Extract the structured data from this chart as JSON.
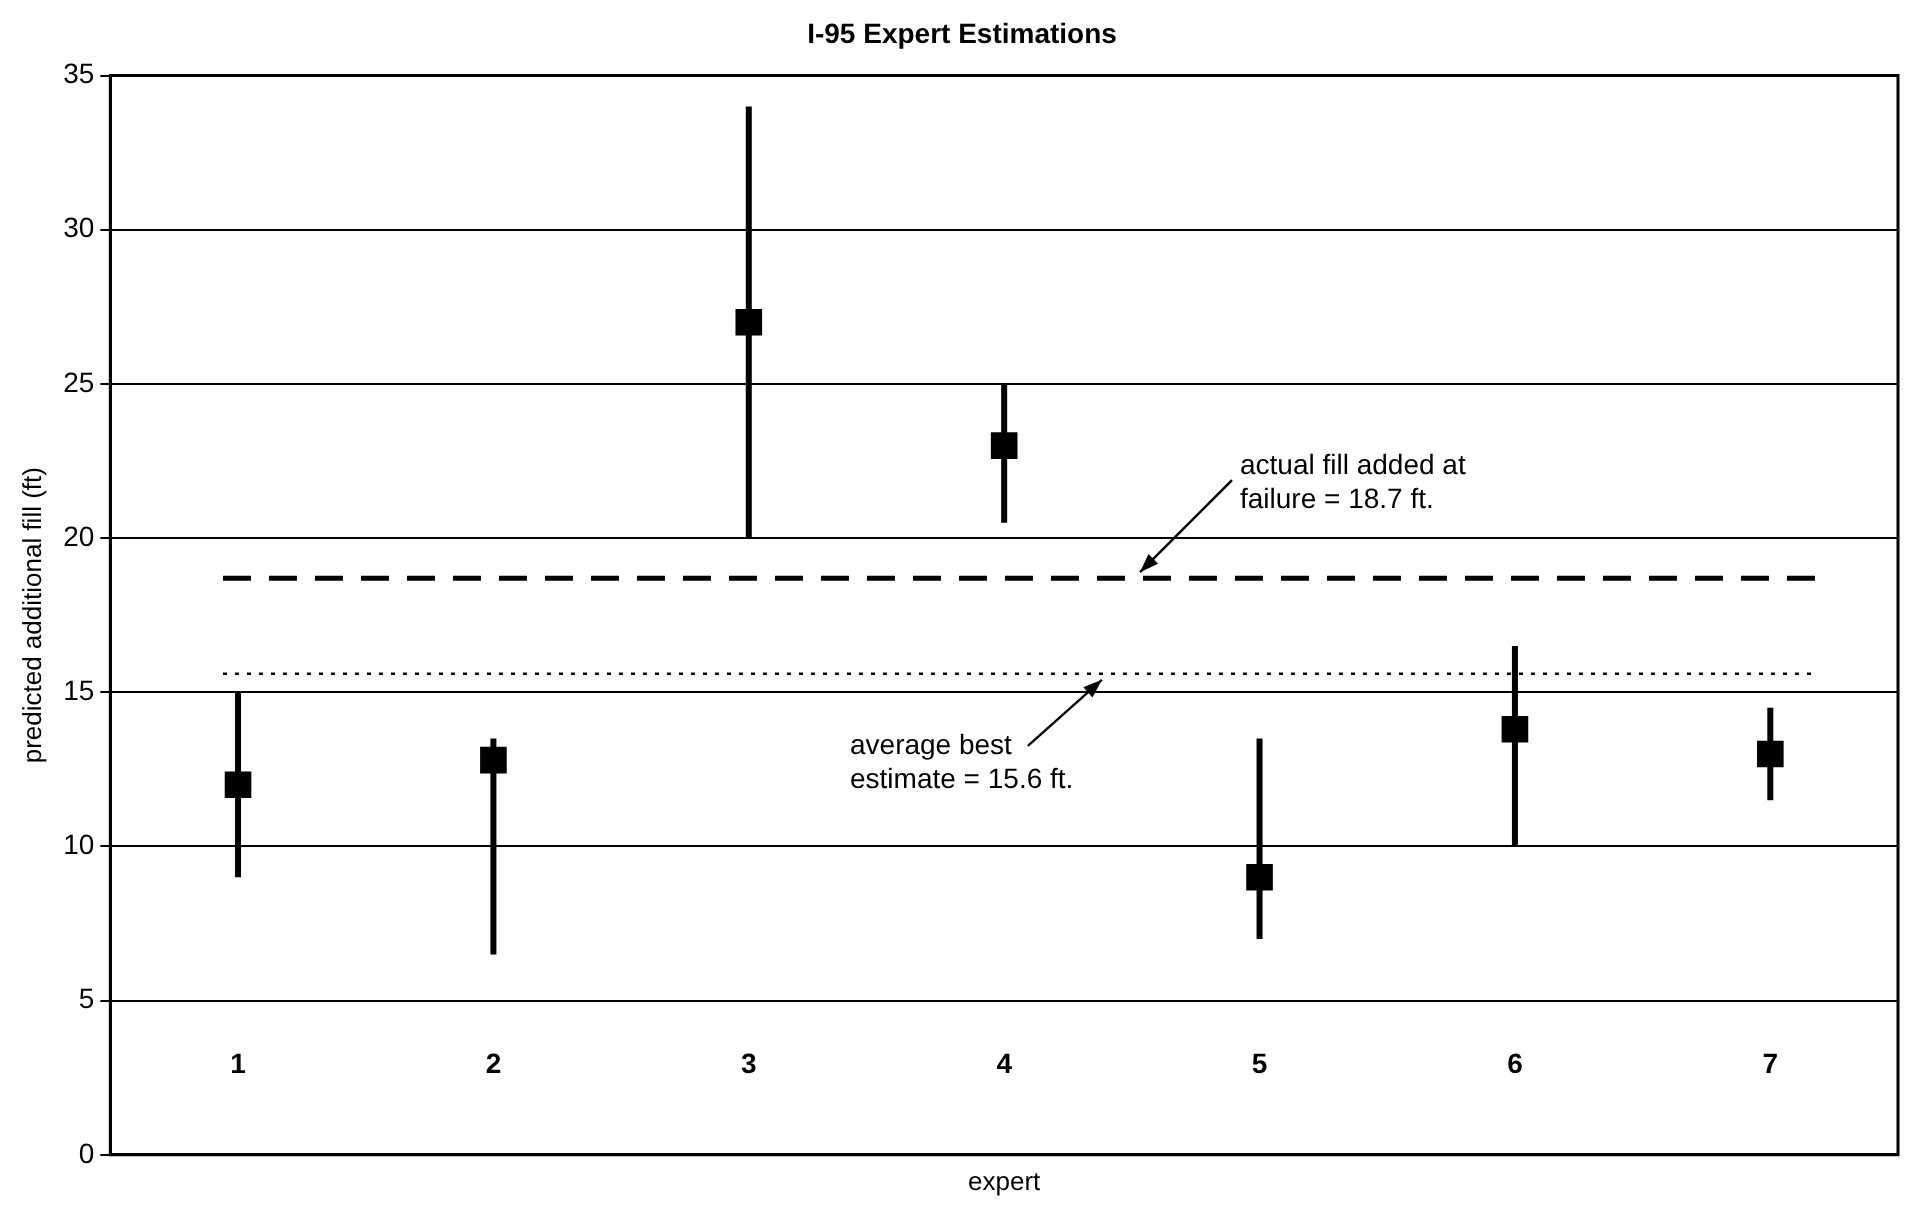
{
  "chart_data": {
    "type": "scatter",
    "title": "I-95 Expert Estimations",
    "xlabel": "expert",
    "ylabel": "predicted additional fill (ft)",
    "categories": [
      "1",
      "2",
      "3",
      "4",
      "5",
      "6",
      "7"
    ],
    "series": [
      {
        "color": "#000000",
        "values": [
          12,
          12.8,
          27,
          23,
          9,
          13.8,
          13
        ],
        "errors": [
          [
            9,
            15
          ],
          [
            6.5,
            13.5
          ],
          [
            20,
            34
          ],
          [
            20.5,
            25
          ],
          [
            7,
            13.5
          ],
          [
            10,
            16.5
          ],
          [
            11.5,
            14.5
          ]
        ]
      }
    ],
    "ref_lines": [
      {
        "axis": "y",
        "value": 18.7,
        "label": "actual fill added at failure = 18.7 ft.",
        "color": "#000000",
        "line_style": "dashed"
      },
      {
        "axis": "y",
        "value": 15.6,
        "label": "average best estimate = 15.6 ft.",
        "color": "#000000",
        "line_style": "dotted"
      }
    ],
    "ylim": [
      0,
      35
    ],
    "yticks": [
      0,
      5,
      10,
      15,
      20,
      25,
      30,
      35
    ],
    "grid": "y",
    "marker": "square"
  }
}
